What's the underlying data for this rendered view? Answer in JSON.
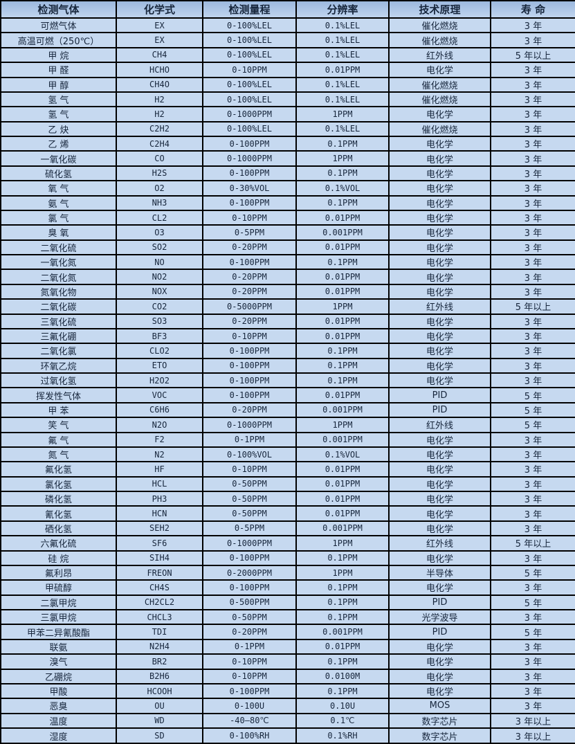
{
  "colors": {
    "row_background": "#c6d9f0",
    "header_top": "#9cb8de",
    "header_bottom": "#bfd4ee",
    "border": "#000000",
    "text": "#17263c"
  },
  "table": {
    "columns": [
      "检测气体",
      "化学式",
      "检测量程",
      "分辨率",
      "技术原理",
      "寿 命"
    ],
    "column_keys": [
      "gas",
      "formula",
      "range",
      "resolution",
      "principle",
      "lifespan"
    ],
    "rows": [
      [
        "可燃气体",
        "EX",
        "0-100%LEL",
        "0.1%LEL",
        "催化燃烧",
        "3 年"
      ],
      [
        "高温可燃（250℃）",
        "EX",
        "0-100%LEL",
        "0.1%LEL",
        "催化燃烧",
        "3 年"
      ],
      [
        "甲 烷",
        "CH4",
        "0-100%LEL",
        "0.1%LEL",
        "红外线",
        "5 年以上"
      ],
      [
        "甲 醛",
        "HCHO",
        "0-10PPM",
        "0.01PPM",
        "电化学",
        "3 年"
      ],
      [
        "甲 醇",
        "CH4O",
        "0-100%LEL",
        "0.1%LEL",
        "催化燃烧",
        "3 年"
      ],
      [
        "氢 气",
        "H2",
        "0-100%LEL",
        "0.1%LEL",
        "催化燃烧",
        "3 年"
      ],
      [
        "氢 气",
        "H2",
        "0-1000PPM",
        "1PPM",
        "电化学",
        "3 年"
      ],
      [
        "乙 炔",
        "C2H2",
        "0-100%LEL",
        "0.1%LEL",
        "催化燃烧",
        "3 年"
      ],
      [
        "乙 烯",
        "C2H4",
        "0-100PPM",
        "0.1PPM",
        "电化学",
        "3 年"
      ],
      [
        "一氧化碳",
        "CO",
        "0-1000PPM",
        "1PPM",
        "电化学",
        "3 年"
      ],
      [
        "硫化氢",
        "H2S",
        "0-100PPM",
        "0.1PPM",
        "电化学",
        "3 年"
      ],
      [
        "氧 气",
        "O2",
        "0-30%VOL",
        "0.1%VOL",
        "电化学",
        "3 年"
      ],
      [
        "氨 气",
        "NH3",
        "0-100PPM",
        "0.1PPM",
        "电化学",
        "3 年"
      ],
      [
        "氯 气",
        "CL2",
        "0-10PPM",
        "0.01PPM",
        "电化学",
        "3 年"
      ],
      [
        "臭 氧",
        "O3",
        "0-5PPM",
        "0.001PPM",
        "电化学",
        "3 年"
      ],
      [
        "二氧化硫",
        "SO2",
        "0-20PPM",
        "0.01PPM",
        "电化学",
        "3 年"
      ],
      [
        "一氧化氮",
        "NO",
        "0-100PPM",
        "0.1PPM",
        "电化学",
        "3 年"
      ],
      [
        "二氧化氮",
        "NO2",
        "0-20PPM",
        "0.01PPM",
        "电化学",
        "3 年"
      ],
      [
        "氮氧化物",
        "NOX",
        "0-20PPM",
        "0.01PPM",
        "电化学",
        "3 年"
      ],
      [
        "二氧化碳",
        "CO2",
        "0-5000PPM",
        "1PPM",
        "红外线",
        "5 年以上"
      ],
      [
        "三氧化硫",
        "SO3",
        "0-20PPM",
        "0.01PPM",
        "电化学",
        "3 年"
      ],
      [
        "三氟化硼",
        "BF3",
        "0-10PPM",
        "0.01PPM",
        "电化学",
        "3 年"
      ],
      [
        "二氧化氯",
        "CLO2",
        "0-100PPM",
        "0.1PPM",
        "电化学",
        "3 年"
      ],
      [
        "环氧乙烷",
        "ETO",
        "0-100PPM",
        "0.1PPM",
        "电化学",
        "3 年"
      ],
      [
        "过氧化氢",
        "H2O2",
        "0-100PPM",
        "0.1PPM",
        "电化学",
        "3 年"
      ],
      [
        "挥发性气体",
        "VOC",
        "0-100PPM",
        "0.01PPM",
        "PID",
        "5 年"
      ],
      [
        "甲 苯",
        "C6H6",
        "0-20PPM",
        "0.001PPM",
        "PID",
        "5 年"
      ],
      [
        "笑 气",
        "N2O",
        "0-1000PPM",
        "1PPM",
        "红外线",
        "5 年"
      ],
      [
        "氟 气",
        "F2",
        "0-1PPM",
        "0.001PPM",
        "电化学",
        "3 年"
      ],
      [
        "氮 气",
        "N2",
        "0-100%VOL",
        "0.1%VOL",
        "电化学",
        "3 年"
      ],
      [
        "氟化氢",
        "HF",
        "0-10PPM",
        "0.01PPM",
        "电化学",
        "3 年"
      ],
      [
        "氯化氢",
        "HCL",
        "0-50PPM",
        "0.01PPM",
        "电化学",
        "3 年"
      ],
      [
        "磷化氢",
        "PH3",
        "0-50PPM",
        "0.01PPM",
        "电化学",
        "3 年"
      ],
      [
        "氰化氢",
        "HCN",
        "0-50PPM",
        "0.01PPM",
        "电化学",
        "3 年"
      ],
      [
        "硒化氢",
        "SEH2",
        "0-5PPM",
        "0.001PPM",
        "电化学",
        "3 年"
      ],
      [
        "六氟化硫",
        "SF6",
        "0-1000PPM",
        "1PPM",
        "红外线",
        "5 年以上"
      ],
      [
        "硅 烷",
        "SIH4",
        "0-100PPM",
        "0.1PPM",
        "电化学",
        "3 年"
      ],
      [
        "氟利昂",
        "FREON",
        "0-2000PPM",
        "1PPM",
        "半导体",
        "5 年"
      ],
      [
        "甲硫醇",
        "CH4S",
        "0-100PPM",
        "0.1PPM",
        "电化学",
        "3 年"
      ],
      [
        "二氯甲烷",
        "CH2CL2",
        "0-500PPM",
        "0.1PPM",
        "PID",
        "5 年"
      ],
      [
        "三氯甲烷",
        "CHCL3",
        "0-50PPM",
        "0.1PPM",
        "光学波导",
        "3 年"
      ],
      [
        "甲苯二异氰酸酯",
        "TDI",
        "0-20PPM",
        "0.001PPM",
        "PID",
        "5 年"
      ],
      [
        "联氨",
        "N2H4",
        "0-1PPM",
        "0.01PPM",
        "电化学",
        "3 年"
      ],
      [
        "溴气",
        "BR2",
        "0-10PPM",
        "0.1PPM",
        "电化学",
        "3 年"
      ],
      [
        "乙硼烷",
        "B2H6",
        "0-10PPM",
        "0.0100M",
        "电化学",
        "3 年"
      ],
      [
        "甲酸",
        "HCOOH",
        "0-100PPM",
        "0.1PPM",
        "电化学",
        "3 年"
      ],
      [
        "恶臭",
        "OU",
        "0-100U",
        "0.10U",
        "MOS",
        "3 年"
      ],
      [
        "温度",
        "WD",
        "-40—80℃",
        "0.1℃",
        "数字芯片",
        "3 年以上"
      ],
      [
        "湿度",
        "SD",
        "0-100%RH",
        "0.1%RH",
        "数字芯片",
        "3 年以上"
      ]
    ]
  }
}
